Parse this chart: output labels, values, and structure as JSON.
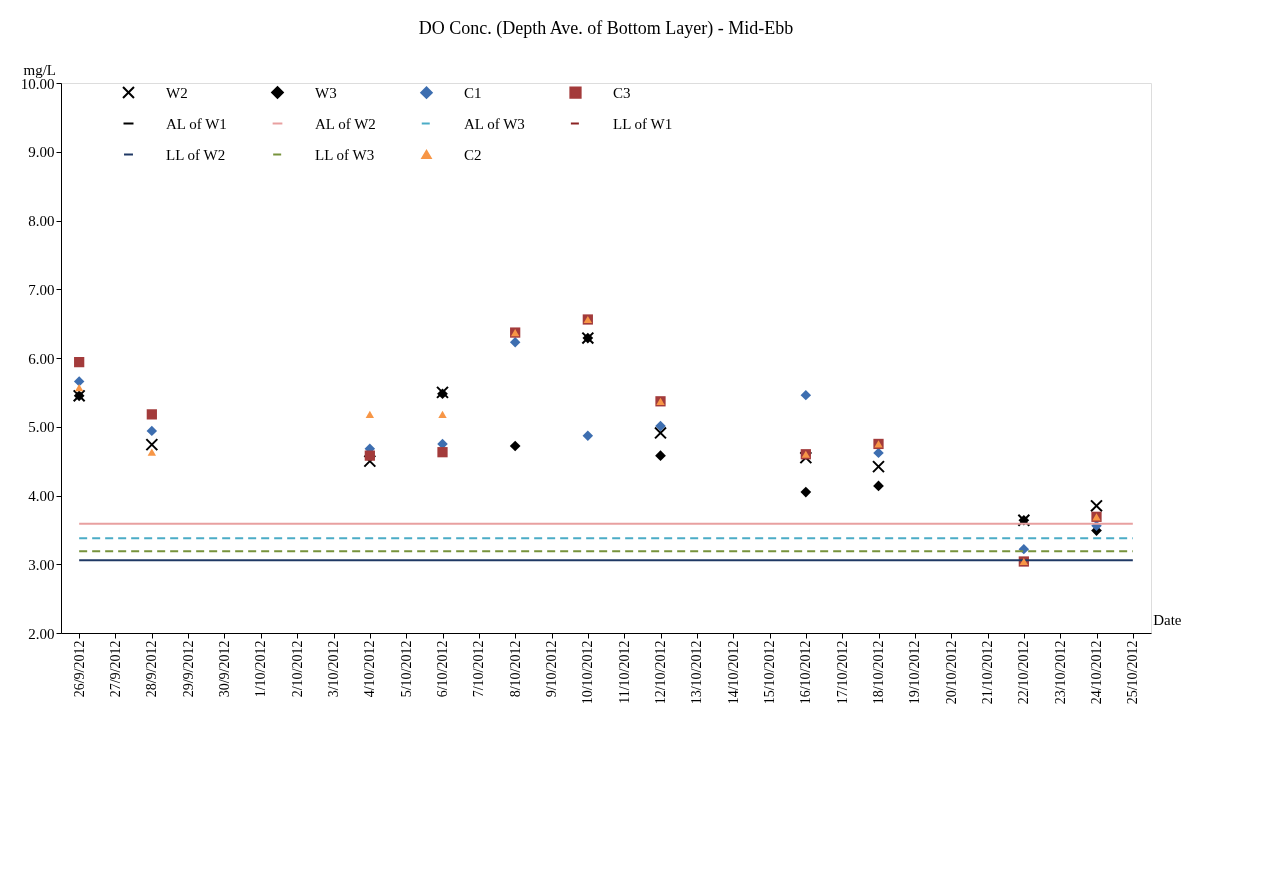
{
  "chart_data": {
    "type": "scatter",
    "title": "DO Conc. (Depth Ave. of Bottom Layer) - Mid-Ebb",
    "ylabel": "mg/L",
    "xlabel": "Date",
    "categories": [
      "26/9/2012",
      "27/9/2012",
      "28/9/2012",
      "29/9/2012",
      "30/9/2012",
      "1/10/2012",
      "2/10/2012",
      "3/10/2012",
      "4/10/2012",
      "5/10/2012",
      "6/10/2012",
      "7/10/2012",
      "8/10/2012",
      "9/10/2012",
      "10/10/2012",
      "11/10/2012",
      "12/10/2012",
      "13/10/2012",
      "14/10/2012",
      "15/10/2012",
      "16/10/2012",
      "17/10/2012",
      "18/10/2012",
      "19/10/2012",
      "20/10/2012",
      "21/10/2012",
      "22/10/2012",
      "23/10/2012",
      "24/10/2012",
      "25/10/2012"
    ],
    "ylim": [
      2,
      10
    ],
    "yticks": [
      {
        "value": 2,
        "label": "2.00"
      },
      {
        "value": 3,
        "label": "3.00"
      },
      {
        "value": 4,
        "label": "4.00"
      },
      {
        "value": 5,
        "label": "5.00"
      },
      {
        "value": 6,
        "label": "6.00"
      },
      {
        "value": 7,
        "label": "7.00"
      },
      {
        "value": 8,
        "label": "8.00"
      },
      {
        "value": 9,
        "label": "9.00"
      },
      {
        "value": 10,
        "label": "10.00"
      }
    ],
    "grid": false,
    "legend": "top",
    "series": [
      {
        "name": "W2",
        "color": "#000000",
        "marker": "cross",
        "values": [
          5.45,
          null,
          4.74,
          null,
          null,
          null,
          null,
          null,
          4.5,
          null,
          5.5,
          null,
          null,
          null,
          6.29,
          null,
          4.91,
          null,
          null,
          null,
          4.55,
          null,
          4.42,
          null,
          null,
          null,
          3.64,
          null,
          3.85,
          null
        ]
      },
      {
        "name": "W3",
        "color": "#000000",
        "marker": "diamond",
        "values": [
          5.45,
          null,
          null,
          null,
          null,
          null,
          null,
          null,
          null,
          null,
          5.48,
          null,
          4.72,
          null,
          6.29,
          null,
          4.58,
          null,
          null,
          null,
          4.05,
          null,
          4.14,
          null,
          null,
          null,
          3.64,
          null,
          3.49,
          null
        ]
      },
      {
        "name": "C1",
        "color": "#3d6eb0",
        "marker": "diamond",
        "values": [
          5.66,
          null,
          4.94,
          null,
          null,
          null,
          null,
          null,
          4.68,
          null,
          4.75,
          null,
          6.23,
          null,
          4.87,
          null,
          5.01,
          null,
          null,
          null,
          5.46,
          null,
          4.62,
          null,
          null,
          null,
          3.22,
          null,
          3.56,
          null
        ]
      },
      {
        "name": "C3",
        "color": "#a33b3b",
        "marker": "square",
        "values": [
          5.94,
          null,
          5.18,
          null,
          null,
          null,
          null,
          null,
          4.58,
          null,
          4.63,
          null,
          6.37,
          null,
          6.56,
          null,
          5.37,
          null,
          null,
          null,
          4.6,
          null,
          4.75,
          null,
          null,
          null,
          3.04,
          null,
          3.69,
          null
        ]
      },
      {
        "name": "AL of W1",
        "type": "line",
        "color": "#000000",
        "line_style": "solid",
        "values": [
          null,
          null,
          null,
          null,
          null,
          null,
          null,
          null,
          null,
          null,
          null,
          null,
          null,
          null,
          null,
          null,
          null,
          null,
          null,
          null,
          null,
          null,
          null,
          null,
          null,
          null,
          null,
          null,
          null,
          null
        ]
      },
      {
        "name": "AL of W2",
        "type": "line",
        "color": "#e8a0a0",
        "line_style": "solid",
        "values": [
          3.59,
          3.59,
          3.59,
          3.59,
          3.59,
          3.59,
          3.59,
          3.59,
          3.59,
          3.59,
          3.59,
          3.59,
          3.59,
          3.59,
          3.59,
          3.59,
          3.59,
          3.59,
          3.59,
          3.59,
          3.59,
          3.59,
          3.59,
          3.59,
          3.59,
          3.59,
          3.59,
          3.59,
          3.59,
          3.59
        ]
      },
      {
        "name": "AL of W3",
        "type": "line",
        "color": "#4bacc6",
        "line_style": "dashed",
        "values": [
          3.38,
          3.38,
          3.38,
          3.38,
          3.38,
          3.38,
          3.38,
          3.38,
          3.38,
          3.38,
          3.38,
          3.38,
          3.38,
          3.38,
          3.38,
          3.38,
          3.38,
          3.38,
          3.38,
          3.38,
          3.38,
          3.38,
          3.38,
          3.38,
          3.38,
          3.38,
          3.38,
          3.38,
          3.38,
          3.38
        ]
      },
      {
        "name": "LL of W1",
        "type": "line",
        "color": "#8b2323",
        "line_style": "dashed",
        "values": [
          null,
          null,
          null,
          null,
          null,
          null,
          null,
          null,
          null,
          null,
          null,
          null,
          null,
          null,
          null,
          null,
          null,
          null,
          null,
          null,
          null,
          null,
          null,
          null,
          null,
          null,
          null,
          null,
          null,
          null
        ]
      },
      {
        "name": "LL of W2",
        "type": "line",
        "color": "#1f3864",
        "line_style": "solid",
        "values": [
          3.06,
          3.06,
          3.06,
          3.06,
          3.06,
          3.06,
          3.06,
          3.06,
          3.06,
          3.06,
          3.06,
          3.06,
          3.06,
          3.06,
          3.06,
          3.06,
          3.06,
          3.06,
          3.06,
          3.06,
          3.06,
          3.06,
          3.06,
          3.06,
          3.06,
          3.06,
          3.06,
          3.06,
          3.06,
          3.06
        ]
      },
      {
        "name": "LL of W3",
        "type": "line",
        "color": "#77933c",
        "line_style": "dashed",
        "values": [
          3.19,
          3.19,
          3.19,
          3.19,
          3.19,
          3.19,
          3.19,
          3.19,
          3.19,
          3.19,
          3.19,
          3.19,
          3.19,
          3.19,
          3.19,
          3.19,
          3.19,
          3.19,
          3.19,
          3.19,
          3.19,
          3.19,
          3.19,
          3.19,
          3.19,
          3.19,
          3.19,
          3.19,
          3.19,
          3.19
        ]
      },
      {
        "name": "C2",
        "color": "#f79646",
        "marker": "triangle",
        "values": [
          5.57,
          null,
          4.63,
          null,
          null,
          null,
          null,
          null,
          5.18,
          null,
          5.18,
          null,
          6.37,
          null,
          6.56,
          null,
          5.37,
          null,
          null,
          null,
          4.6,
          null,
          4.75,
          null,
          null,
          null,
          3.04,
          null,
          3.69,
          null
        ]
      }
    ]
  }
}
